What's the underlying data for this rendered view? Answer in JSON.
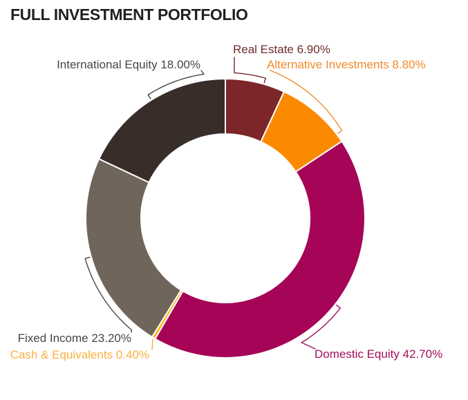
{
  "page": {
    "background": "#FFFFFF"
  },
  "header": {
    "title": "FULL INVESTMENT PORTFOLIO",
    "title_color": "#231F20"
  },
  "chart_data": {
    "type": "pie",
    "subtype": "donut",
    "title": "FULL INVESTMENT PORTFOLIO",
    "start_angle_deg": 0,
    "direction": "clockwise",
    "total": 100.0,
    "inner_radius_ratio": 0.6,
    "legend_position": "callout-labels",
    "slices": [
      {
        "id": "real-estate",
        "label": "Real Estate",
        "value": 6.9,
        "display": "6.90%",
        "text": "Real Estate 6.90%",
        "color": "#7C2629",
        "label_color": "#702B2B"
      },
      {
        "id": "alternative-investments",
        "label": "Alternative Investments",
        "value": 8.8,
        "display": "8.80%",
        "text": "Alternative Investments 8.80%",
        "color": "#FC8A00",
        "label_color": "#F28A2A"
      },
      {
        "id": "domestic-equity",
        "label": "Domestic Equity",
        "value": 42.7,
        "display": "42.70%",
        "text": "Domestic Equity 42.70%",
        "color": "#A60457",
        "label_color": "#A40E5C"
      },
      {
        "id": "cash-equivalents",
        "label": "Cash & Equivalents",
        "value": 0.4,
        "display": "0.40%",
        "text": "Cash & Equivalents 0.40%",
        "color": "#FFB30E",
        "label_color": "#F9B041"
      },
      {
        "id": "fixed-income",
        "label": "Fixed Income",
        "value": 23.2,
        "display": "23.20%",
        "text": "Fixed Income 23.20%",
        "color": "#6F655A",
        "label_color": "#4A4540"
      },
      {
        "id": "international-equity",
        "label": "International Equity",
        "value": 18.0,
        "display": "18.00%",
        "text": "International Equity 18.00%",
        "color": "#382D29",
        "label_color": "#4A4540"
      }
    ]
  }
}
